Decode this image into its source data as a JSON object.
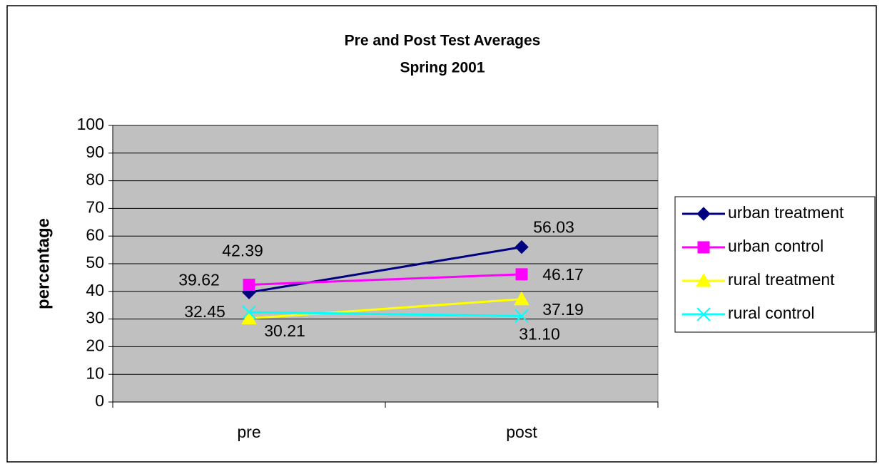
{
  "chart_data": {
    "type": "line",
    "title": "Pre and Post Test Averages",
    "subtitle": "Spring 2001",
    "y_label": "percentage",
    "categories": [
      "pre",
      "post"
    ],
    "series": [
      {
        "name": "urban treatment",
        "color": "#000080",
        "marker": "diamond",
        "values": [
          39.62,
          56.03
        ],
        "value_labels": [
          "39.62",
          "56.03"
        ]
      },
      {
        "name": "urban control",
        "color": "#FF00FF",
        "marker": "square",
        "values": [
          42.39,
          46.17
        ],
        "value_labels": [
          "42.39",
          "46.17"
        ]
      },
      {
        "name": "rural treatment",
        "color": "#FFFF00",
        "marker": "triangle",
        "values": [
          30.21,
          37.19
        ],
        "value_labels": [
          "30.21",
          "37.19"
        ]
      },
      {
        "name": "rural control",
        "color": "#00FFFF",
        "marker": "x",
        "values": [
          32.45,
          31.1
        ],
        "value_labels": [
          "32.45",
          "31.10"
        ]
      }
    ],
    "ylim": [
      0,
      100
    ],
    "yticks": [
      0,
      10,
      20,
      30,
      40,
      50,
      60,
      70,
      80,
      90,
      100
    ],
    "grid": true,
    "legend": "right",
    "plot_background": "#C0C0C0"
  }
}
